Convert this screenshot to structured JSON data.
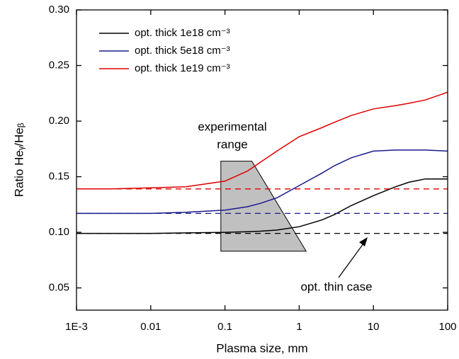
{
  "chart_data": {
    "type": "line",
    "xlabel": "Plasma size, mm",
    "ylabel": "Ratio Heᵧ/Heᵦ",
    "xscale": "log",
    "xlim": [
      0.001,
      100
    ],
    "xticks": [
      {
        "value": 0.001,
        "label": "1E-3"
      },
      0.01,
      0.1,
      1,
      10,
      100
    ],
    "ylim": [
      0.03,
      0.3
    ],
    "yticks": [
      {
        "value": 0.05,
        "label": "0.05"
      },
      {
        "value": 0.1,
        "label": "0.10"
      },
      0.15,
      {
        "value": 0.2,
        "label": "0.20"
      },
      0.25,
      {
        "value": 0.3,
        "label": "0.30"
      }
    ],
    "legend": "upper left",
    "x": [
      0.001,
      0.003,
      0.01,
      0.03,
      0.1,
      0.2,
      0.3,
      0.5,
      1,
      2,
      3,
      5,
      10,
      20,
      30,
      50,
      100
    ],
    "series": [
      {
        "name": "opt. thick 1e18 cm⁻³",
        "color": "#000000",
        "thin_value": 0.099,
        "values": [
          0.099,
          0.099,
          0.099,
          0.0995,
          0.1,
          0.1005,
          0.101,
          0.102,
          0.105,
          0.111,
          0.116,
          0.124,
          0.133,
          0.141,
          0.145,
          0.148,
          0.148
        ]
      },
      {
        "name": "opt. thick 5e18 cm⁻³",
        "color": "#1a1a8c",
        "thin_value": 0.117,
        "values": [
          0.117,
          0.117,
          0.117,
          0.118,
          0.12,
          0.123,
          0.126,
          0.131,
          0.142,
          0.153,
          0.16,
          0.167,
          0.173,
          0.174,
          0.174,
          0.174,
          0.173
        ]
      },
      {
        "name": "opt. thick 1e19 cm⁻³",
        "color": "#e00000",
        "thin_value": 0.139,
        "values": [
          0.139,
          0.139,
          0.14,
          0.141,
          0.146,
          0.155,
          0.163,
          0.173,
          0.186,
          0.194,
          0.199,
          0.205,
          0.211,
          0.214,
          0.216,
          0.219,
          0.226
        ]
      }
    ],
    "region": {
      "color": "#c0c0c0",
      "x": [
        0.088,
        0.23,
        1.24,
        0.088
      ],
      "y": [
        0.164,
        0.164,
        0.083,
        0.083
      ]
    },
    "region_label": [
      "experimental",
      "range"
    ],
    "thin_label": "opt. thin case"
  }
}
